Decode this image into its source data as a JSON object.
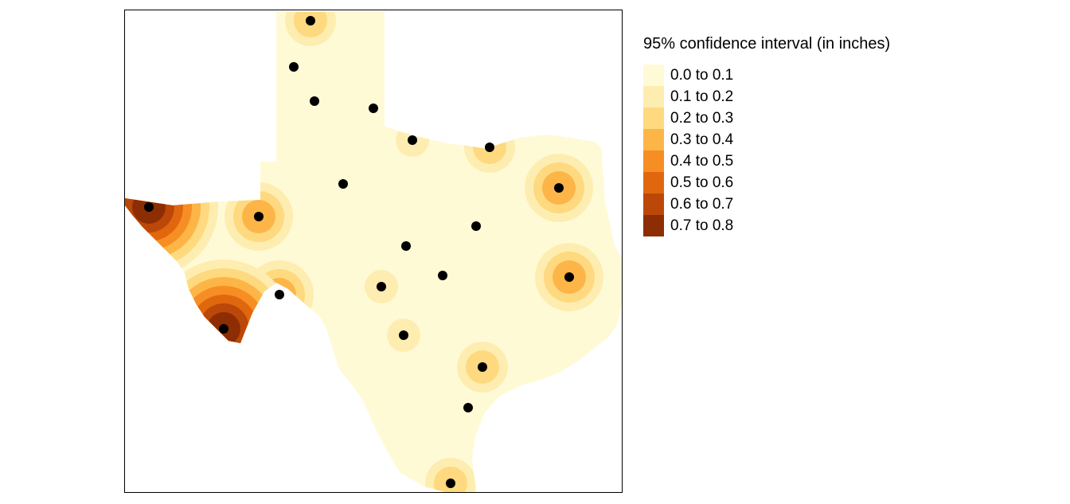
{
  "legend": {
    "title": "95% confidence interval (in inches)",
    "classes": [
      {
        "label": "0.0 to 0.1",
        "color": "#FFFAD6"
      },
      {
        "label": "0.1 to 0.2",
        "color": "#FEEDB0"
      },
      {
        "label": "0.2 to 0.3",
        "color": "#FED97F"
      },
      {
        "label": "0.3 to 0.4",
        "color": "#FDB548"
      },
      {
        "label": "0.4 to 0.5",
        "color": "#F78E24"
      },
      {
        "label": "0.5 to 0.6",
        "color": "#E1670E"
      },
      {
        "label": "0.6 to 0.7",
        "color": "#BB4808"
      },
      {
        "label": "0.7 to 0.8",
        "color": "#8C2D04"
      }
    ]
  },
  "map": {
    "region": "Texas",
    "station_marker_color": "#000000",
    "stations": [
      {
        "id": "s1",
        "ci": 0.22
      },
      {
        "id": "s2",
        "ci": 0.05
      },
      {
        "id": "s3",
        "ci": 0.05
      },
      {
        "id": "s4",
        "ci": 0.05
      },
      {
        "id": "s5",
        "ci": 0.12
      },
      {
        "id": "s6",
        "ci": 0.25
      },
      {
        "id": "s7",
        "ci": 0.35
      },
      {
        "id": "s8",
        "ci": 0.05
      },
      {
        "id": "s9",
        "ci": 0.75
      },
      {
        "id": "s10",
        "ci": 0.35
      },
      {
        "id": "s11",
        "ci": 0.05
      },
      {
        "id": "s12",
        "ci": 0.05
      },
      {
        "id": "s13",
        "ci": 0.35
      },
      {
        "id": "s14",
        "ci": 0.35
      },
      {
        "id": "s15",
        "ci": 0.12
      },
      {
        "id": "s16",
        "ci": 0.05
      },
      {
        "id": "s17",
        "ci": 0.78
      },
      {
        "id": "s18",
        "ci": 0.12
      },
      {
        "id": "s19",
        "ci": 0.22
      },
      {
        "id": "s20",
        "ci": 0.05
      },
      {
        "id": "s21",
        "ci": 0.22
      }
    ]
  }
}
